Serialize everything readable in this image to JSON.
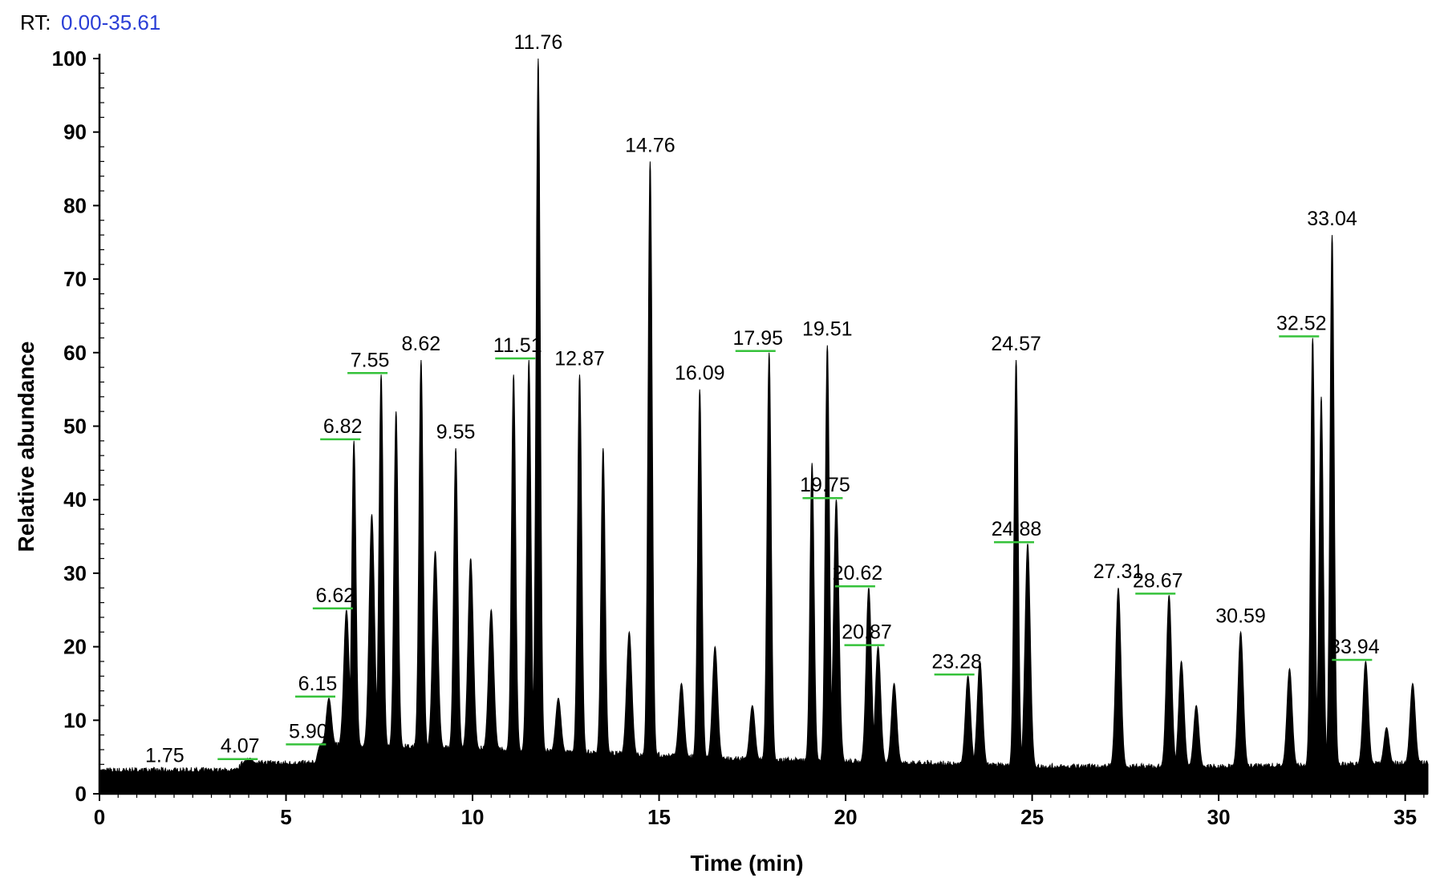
{
  "header": {
    "rt_prefix": "RT:",
    "rt_range": "0.00-35.61"
  },
  "chart_data": {
    "type": "line",
    "xlabel": "Time (min)",
    "ylabel": "Relative abundance",
    "xlim": [
      0,
      35.61
    ],
    "ylim": [
      0,
      100
    ],
    "x_ticks": [
      0,
      5,
      10,
      15,
      20,
      25,
      30,
      35
    ],
    "y_ticks": [
      0,
      10,
      20,
      30,
      40,
      50,
      60,
      70,
      80,
      90,
      100
    ],
    "grid": false,
    "legend": "none",
    "trace_color": "#000000",
    "marker_color": "#35c23a",
    "baseline": [
      [
        0,
        3
      ],
      [
        3.7,
        3
      ],
      [
        3.9,
        4.5
      ],
      [
        4.3,
        4
      ],
      [
        5.8,
        4
      ],
      [
        6.0,
        6.5
      ],
      [
        10,
        6
      ],
      [
        15,
        5
      ],
      [
        17,
        4.5
      ],
      [
        22,
        4
      ],
      [
        25,
        3.5
      ],
      [
        30,
        3.5
      ],
      [
        35.61,
        4
      ]
    ],
    "peaks": [
      {
        "rt": 1.75,
        "height": 3,
        "label": "1.75",
        "marked": false
      },
      {
        "rt": 4.07,
        "height": 4.5,
        "label": "4.07",
        "marked": true
      },
      {
        "rt": 5.9,
        "height": 6.5,
        "label": "5.90",
        "marked": true
      },
      {
        "rt": 6.15,
        "height": 13,
        "label": "6.15",
        "marked": true
      },
      {
        "rt": 6.62,
        "height": 25,
        "label": "6.62",
        "marked": true
      },
      {
        "rt": 6.82,
        "height": 48,
        "label": "6.82",
        "marked": true
      },
      {
        "rt": 7.3,
        "height": 38,
        "label": "",
        "marked": false
      },
      {
        "rt": 7.55,
        "height": 57,
        "label": "7.55",
        "marked": true
      },
      {
        "rt": 7.95,
        "height": 52,
        "label": "",
        "marked": false
      },
      {
        "rt": 8.62,
        "height": 59,
        "label": "8.62",
        "marked": false
      },
      {
        "rt": 9.0,
        "height": 33,
        "label": "",
        "marked": false
      },
      {
        "rt": 9.55,
        "height": 47,
        "label": "9.55",
        "marked": false
      },
      {
        "rt": 9.95,
        "height": 32,
        "label": "",
        "marked": false
      },
      {
        "rt": 10.5,
        "height": 25,
        "label": "",
        "marked": false
      },
      {
        "rt": 11.1,
        "height": 57,
        "label": "",
        "marked": false
      },
      {
        "rt": 11.51,
        "height": 59,
        "label": "11.51",
        "marked": true
      },
      {
        "rt": 11.76,
        "height": 100,
        "label": "11.76",
        "marked": false
      },
      {
        "rt": 12.3,
        "height": 13,
        "label": "",
        "marked": false
      },
      {
        "rt": 12.87,
        "height": 57,
        "label": "12.87",
        "marked": false
      },
      {
        "rt": 13.5,
        "height": 47,
        "label": "",
        "marked": false
      },
      {
        "rt": 14.2,
        "height": 22,
        "label": "",
        "marked": false
      },
      {
        "rt": 14.76,
        "height": 86,
        "label": "14.76",
        "marked": false
      },
      {
        "rt": 15.6,
        "height": 15,
        "label": "",
        "marked": false
      },
      {
        "rt": 16.09,
        "height": 55,
        "label": "16.09",
        "marked": false
      },
      {
        "rt": 16.5,
        "height": 20,
        "label": "",
        "marked": false
      },
      {
        "rt": 17.5,
        "height": 12,
        "label": "",
        "marked": false
      },
      {
        "rt": 17.95,
        "height": 60,
        "label": "17.95",
        "marked": true
      },
      {
        "rt": 19.1,
        "height": 45,
        "label": "",
        "marked": false
      },
      {
        "rt": 19.51,
        "height": 61,
        "label": "19.51",
        "marked": false
      },
      {
        "rt": 19.75,
        "height": 40,
        "label": "19.75",
        "marked": true
      },
      {
        "rt": 20.62,
        "height": 28,
        "label": "20.62",
        "marked": true
      },
      {
        "rt": 20.87,
        "height": 20,
        "label": "20.87",
        "marked": true
      },
      {
        "rt": 21.3,
        "height": 15,
        "label": "",
        "marked": false
      },
      {
        "rt": 23.28,
        "height": 16,
        "label": "23.28",
        "marked": true
      },
      {
        "rt": 23.6,
        "height": 18,
        "label": "",
        "marked": false
      },
      {
        "rt": 24.57,
        "height": 59,
        "label": "24.57",
        "marked": false
      },
      {
        "rt": 24.88,
        "height": 34,
        "label": "24.88",
        "marked": true
      },
      {
        "rt": 27.31,
        "height": 28,
        "label": "27.31",
        "marked": false
      },
      {
        "rt": 28.67,
        "height": 27,
        "label": "28.67",
        "marked": true
      },
      {
        "rt": 29.0,
        "height": 18,
        "label": "",
        "marked": false
      },
      {
        "rt": 29.4,
        "height": 12,
        "label": "",
        "marked": false
      },
      {
        "rt": 30.59,
        "height": 22,
        "label": "30.59",
        "marked": false
      },
      {
        "rt": 31.9,
        "height": 17,
        "label": "",
        "marked": false
      },
      {
        "rt": 32.52,
        "height": 62,
        "label": "32.52",
        "marked": true
      },
      {
        "rt": 32.75,
        "height": 54,
        "label": "",
        "marked": false
      },
      {
        "rt": 33.04,
        "height": 76,
        "label": "33.04",
        "marked": false
      },
      {
        "rt": 33.94,
        "height": 18,
        "label": "33.94",
        "marked": true
      },
      {
        "rt": 34.5,
        "height": 9,
        "label": "",
        "marked": false
      },
      {
        "rt": 35.2,
        "height": 15,
        "label": "",
        "marked": false
      }
    ]
  }
}
